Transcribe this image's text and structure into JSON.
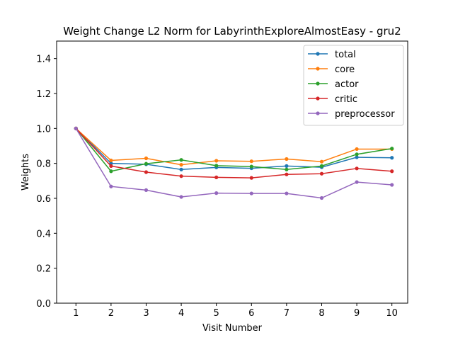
{
  "chart_data": {
    "type": "line",
    "title": "Weight Change L2 Norm for LabyrinthExploreAlmostEasy - gru2",
    "xlabel": "Visit Number",
    "ylabel": "Weights",
    "x": [
      1,
      2,
      3,
      4,
      5,
      6,
      7,
      8,
      9,
      10
    ],
    "xticks": [
      "1",
      "2",
      "3",
      "4",
      "5",
      "6",
      "7",
      "8",
      "9",
      "10"
    ],
    "xlim": [
      0.45,
      10.45
    ],
    "ylim": [
      0.0,
      1.5
    ],
    "yticks": [
      "0.0",
      "0.2",
      "0.4",
      "0.6",
      "0.8",
      "1.0",
      "1.2",
      "1.4"
    ],
    "grid": false,
    "legend_position": "top-right",
    "series": [
      {
        "name": "total",
        "color": "#1f77b4",
        "values": [
          1.0,
          0.8,
          0.795,
          0.765,
          0.777,
          0.772,
          0.785,
          0.778,
          0.835,
          0.832
        ]
      },
      {
        "name": "core",
        "color": "#ff7f0e",
        "values": [
          1.0,
          0.817,
          0.829,
          0.792,
          0.815,
          0.812,
          0.825,
          0.81,
          0.882,
          0.882
        ]
      },
      {
        "name": "actor",
        "color": "#2ca02c",
        "values": [
          1.0,
          0.755,
          0.798,
          0.82,
          0.787,
          0.782,
          0.765,
          0.785,
          0.852,
          0.885
        ]
      },
      {
        "name": "critic",
        "color": "#d62728",
        "values": [
          1.0,
          0.785,
          0.75,
          0.727,
          0.72,
          0.717,
          0.737,
          0.741,
          0.771,
          0.755
        ]
      },
      {
        "name": "preprocessor",
        "color": "#9467bd",
        "values": [
          1.0,
          0.668,
          0.647,
          0.608,
          0.63,
          0.628,
          0.628,
          0.602,
          0.693,
          0.677
        ]
      }
    ]
  }
}
